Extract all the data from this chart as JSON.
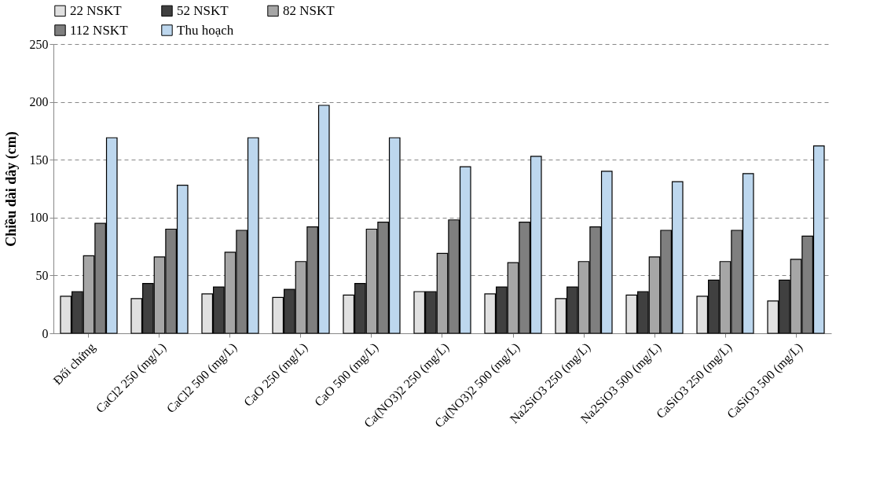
{
  "chart_data": {
    "type": "bar",
    "ylabel": "Chiều dài dây (cm)",
    "categories": [
      "Đối chứng",
      "CaCl2 250 (mg/L)",
      "CaCl2  500 (mg/L)",
      "CaO 250 (mg/L)",
      "CaO 500 (mg/L)",
      "Ca(NO3)2 250 (mg/L)",
      "Ca(NO3)2  500 (mg/L)",
      "Na2SiO3 250 (mg/L)",
      "Na2SiO3 500 (mg/L)",
      "CaSiO3 250 (mg/L)",
      "CaSiO3  500 (mg/L)"
    ],
    "series": [
      {
        "name": "22 NSKT",
        "color": "#e0e0e0",
        "values": [
          32,
          30,
          34,
          31,
          33,
          36,
          34,
          30,
          33,
          32,
          28
        ]
      },
      {
        "name": "52 NSKT",
        "color": "#404040",
        "values": [
          36,
          43,
          40,
          38,
          43,
          36,
          40,
          40,
          36,
          46,
          46
        ]
      },
      {
        "name": "82 NSKT",
        "color": "#a6a6a6",
        "values": [
          67,
          66,
          70,
          62,
          90,
          69,
          61,
          62,
          66,
          62,
          64
        ]
      },
      {
        "name": "112 NSKT",
        "color": "#7f7f7f",
        "values": [
          95,
          90,
          89,
          92,
          96,
          98,
          96,
          92,
          89,
          89,
          84
        ]
      },
      {
        "name": "Thu hoạch",
        "color": "#bdd7ee",
        "values": [
          169,
          128,
          169,
          197,
          169,
          144,
          153,
          140,
          131,
          138,
          162
        ]
      }
    ],
    "ylim": [
      0,
      250
    ],
    "yticks": [
      0,
      50,
      100,
      150,
      200,
      250
    ],
    "grid": "y",
    "legend": "top"
  }
}
